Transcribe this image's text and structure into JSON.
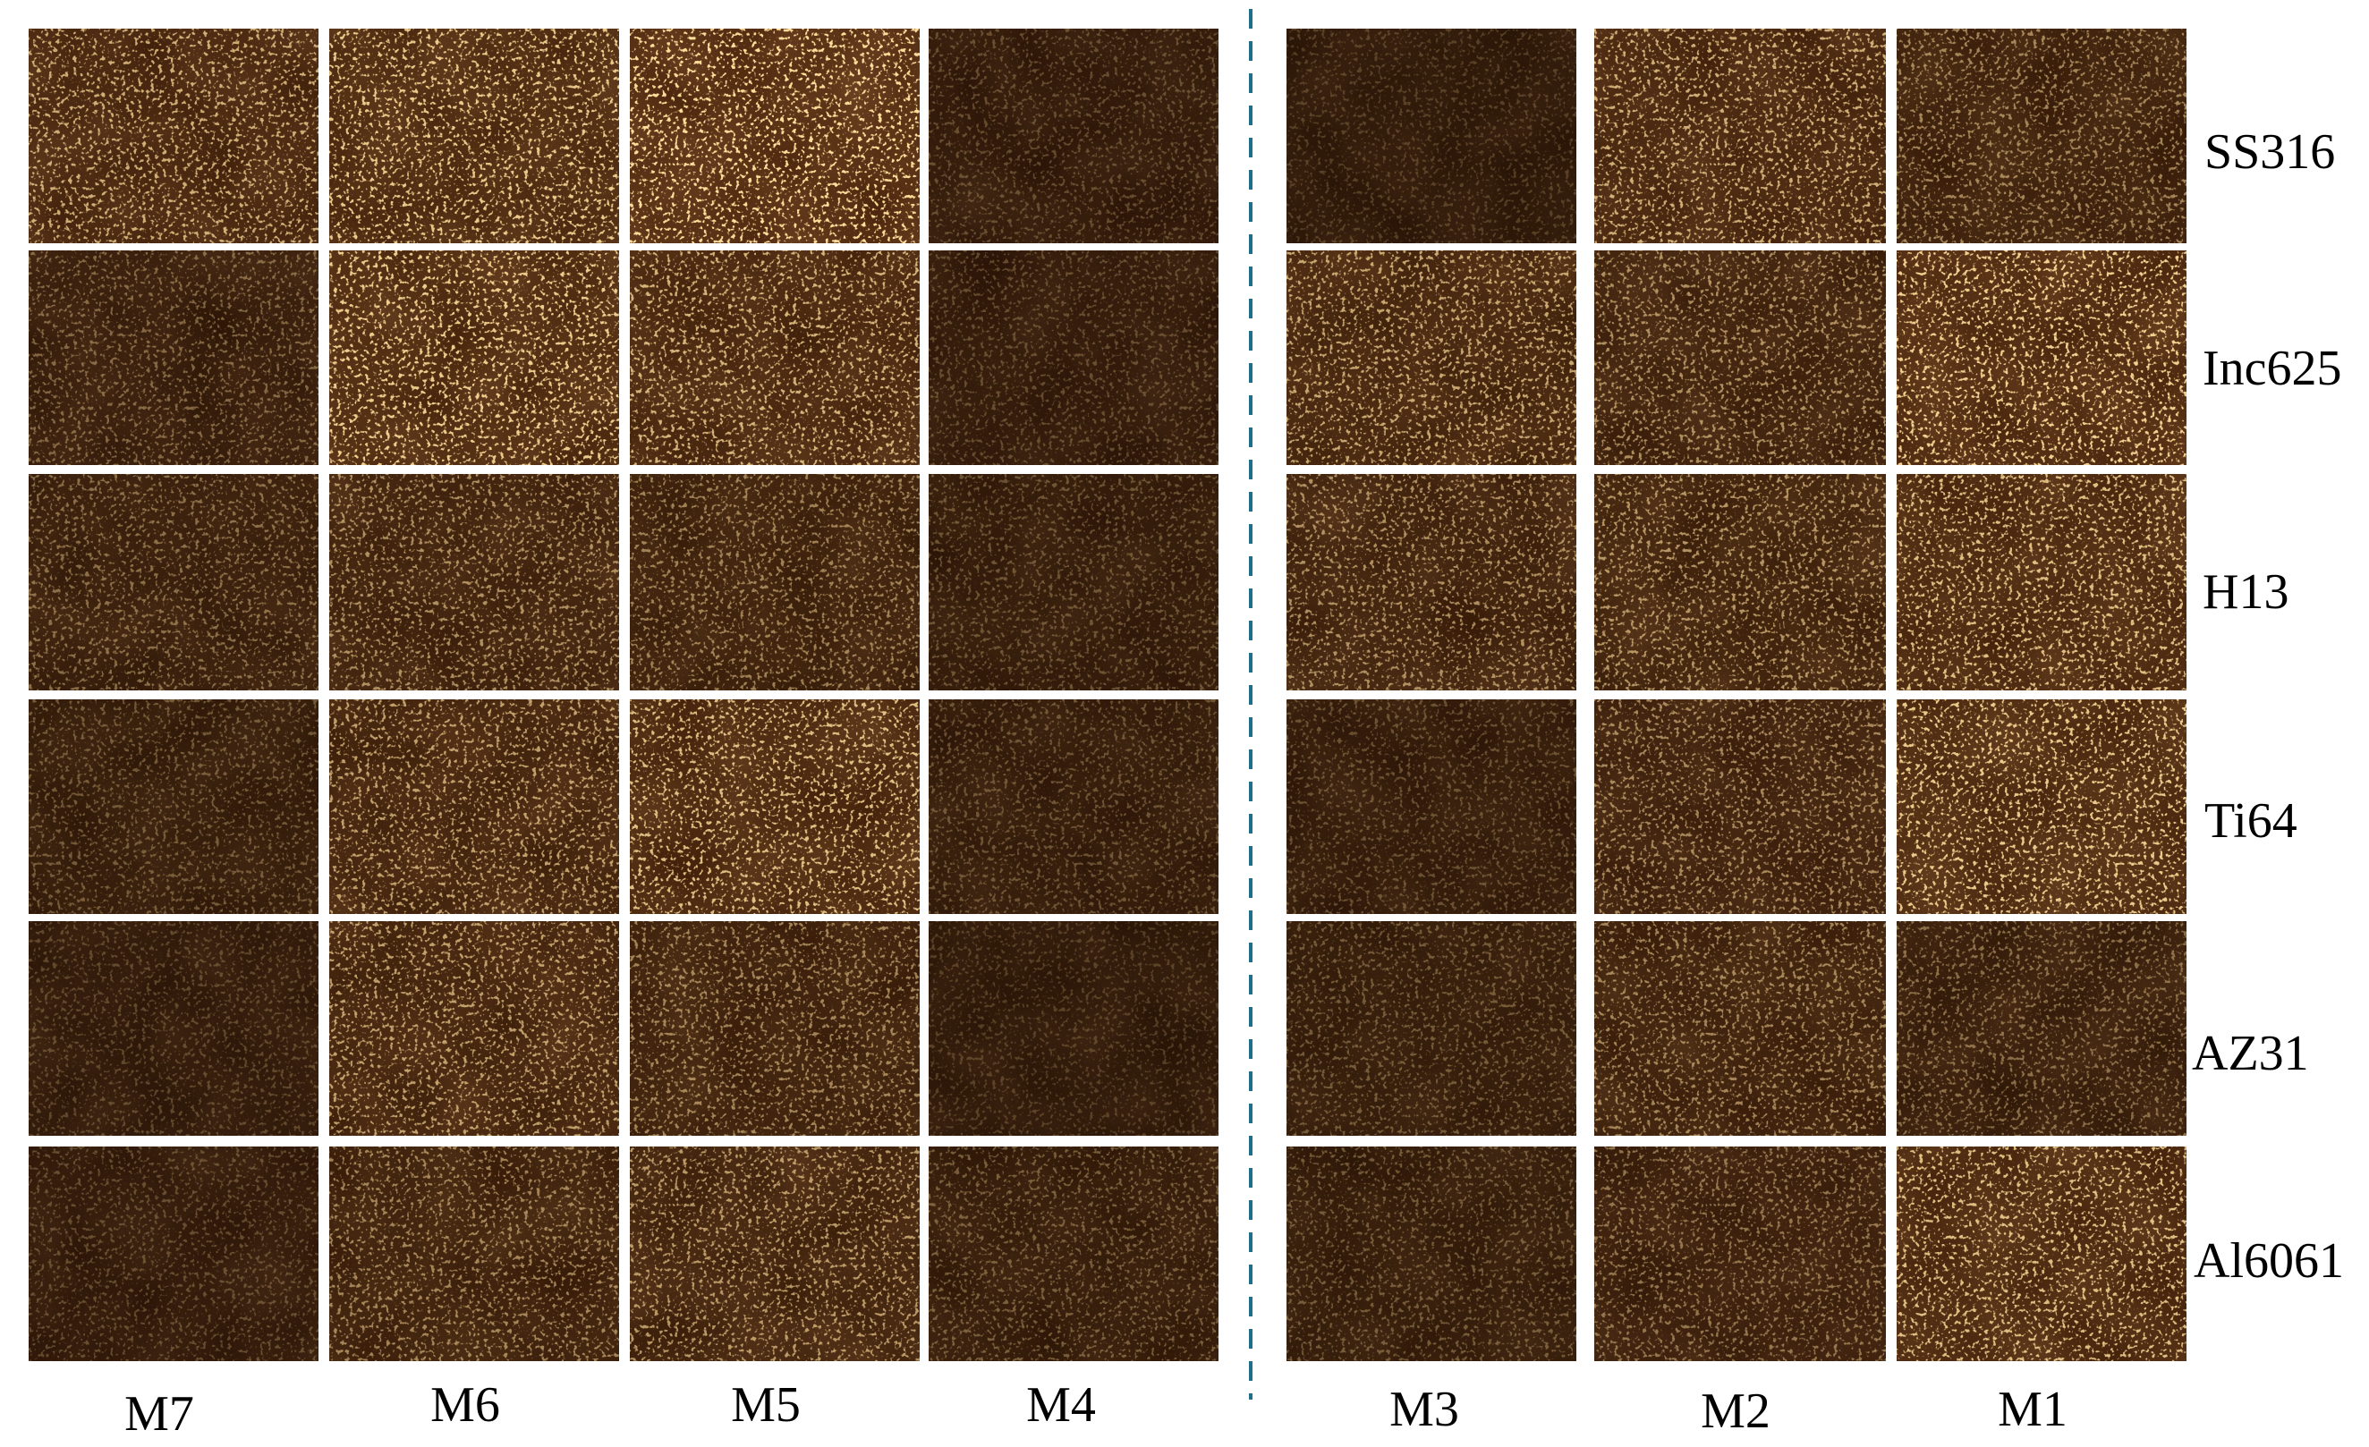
{
  "figure": {
    "row_labels": [
      "SS316",
      "Inc625",
      "H13",
      "Ti64",
      "AZ31",
      "Al6061"
    ],
    "column_labels": [
      "M7",
      "M6",
      "M5",
      "M4",
      "M3",
      "M2",
      "M1"
    ],
    "panel_content": "fluorescence micrograph",
    "colors": {
      "background": "#ffffff",
      "panel_base": "#2a1405",
      "speckle_warm": "#ffb347",
      "divider": "#1f6f8b"
    },
    "panel_intensity": [
      [
        0.62,
        0.78,
        0.92,
        0.12,
        0.05,
        0.62,
        0.4
      ],
      [
        0.25,
        0.8,
        0.65,
        0.12,
        0.58,
        0.45,
        0.82
      ],
      [
        0.28,
        0.45,
        0.38,
        0.15,
        0.45,
        0.48,
        0.72
      ],
      [
        0.18,
        0.55,
        0.72,
        0.15,
        0.14,
        0.42,
        0.78
      ],
      [
        0.1,
        0.55,
        0.4,
        0.05,
        0.18,
        0.4,
        0.28
      ],
      [
        0.12,
        0.4,
        0.5,
        0.2,
        0.18,
        0.32,
        0.72
      ]
    ]
  }
}
